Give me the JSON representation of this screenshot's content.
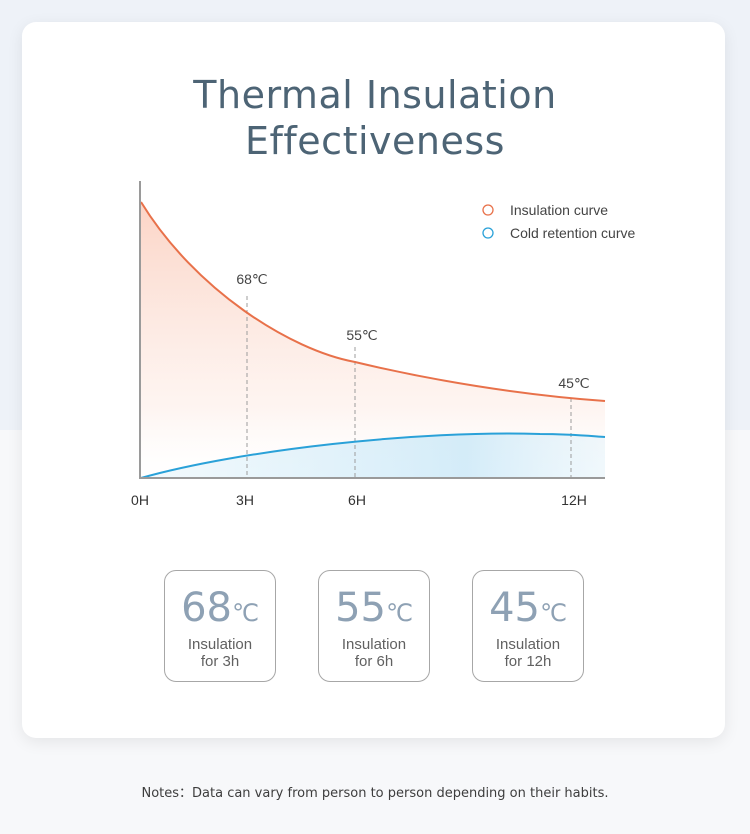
{
  "title": {
    "line1": "Thermal Insulation",
    "line2": "Effectiveness"
  },
  "chart_data": {
    "type": "area",
    "x": [
      "0H",
      "3H",
      "6H",
      "12H"
    ],
    "x_hours": [
      0,
      3,
      6,
      12
    ],
    "series": [
      {
        "name": "Insulation curve",
        "color": "#e8714a",
        "values": [
          100,
          68,
          55,
          45
        ]
      },
      {
        "name": "Cold retention curve",
        "color": "#2aa1d8",
        "values": [
          null,
          null,
          null,
          null
        ]
      }
    ],
    "point_labels": [
      "68℃",
      "55℃",
      "45℃"
    ],
    "legend_placement": "top-right",
    "grid": false
  },
  "badges": [
    {
      "value": "68",
      "unit": "℃",
      "line1": "Insulation",
      "line2": "for 3h"
    },
    {
      "value": "55",
      "unit": "℃",
      "line1": "Insulation",
      "line2": "for 6h"
    },
    {
      "value": "45",
      "unit": "℃",
      "line1": "Insulation",
      "line2": "for 12h"
    }
  ],
  "notes": "Notes：Data can vary from person to person depending on their habits."
}
